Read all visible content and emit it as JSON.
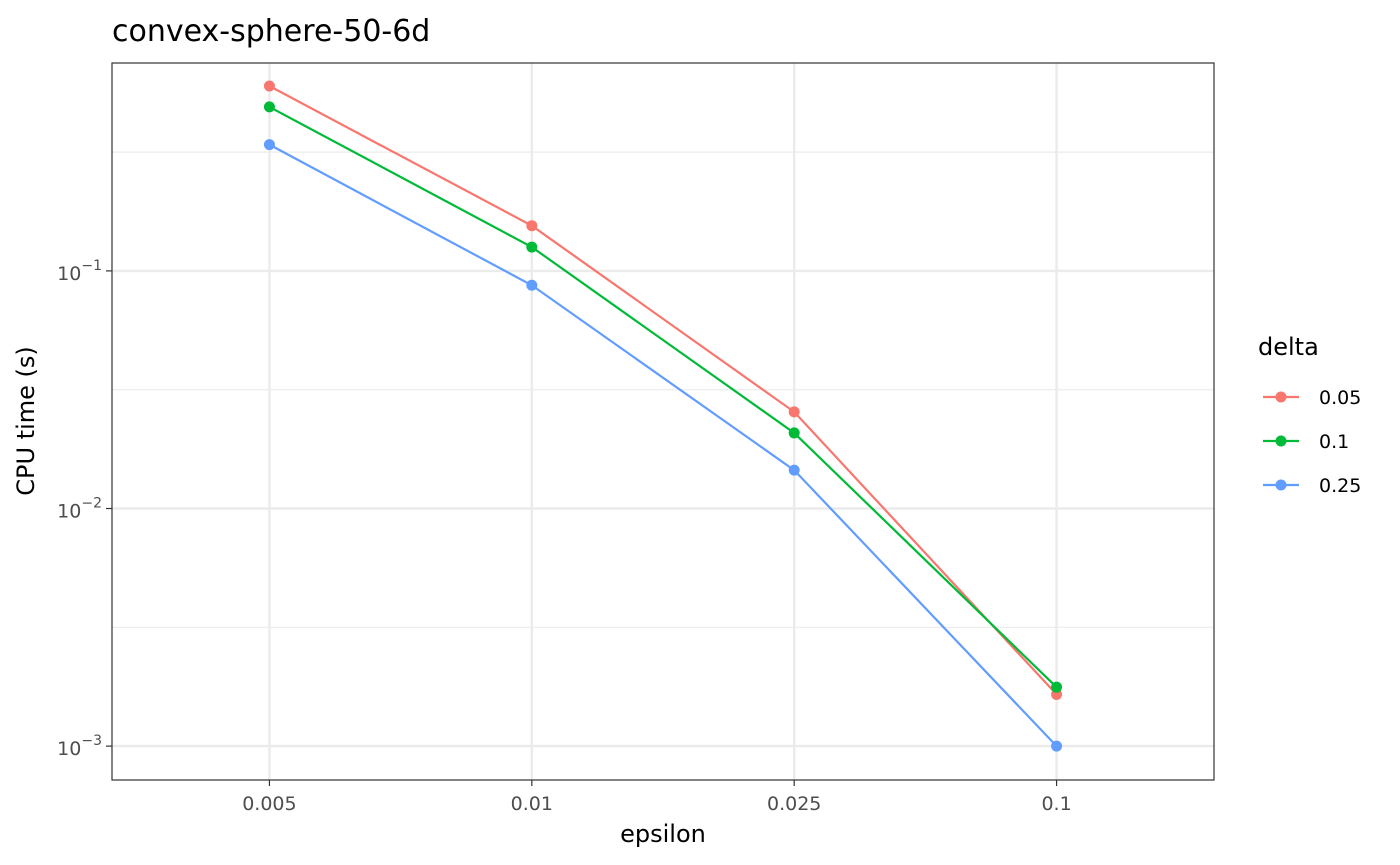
{
  "chart_data": {
    "type": "line",
    "title": "convex-sphere-50-6d",
    "xlabel": "epsilon",
    "ylabel": "CPU time (s)",
    "x_scale": "categorical",
    "y_scale": "log10",
    "categories": [
      "0.005",
      "0.01",
      "0.025",
      "0.1"
    ],
    "ylim": [
      0.00072,
      0.75
    ],
    "y_ticks": [
      {
        "value": 0.1,
        "base": "10",
        "exp": "−1"
      },
      {
        "value": 0.01,
        "base": "10",
        "exp": "−2"
      },
      {
        "value": 0.001,
        "base": "10",
        "exp": "−3"
      }
    ],
    "grid": true,
    "legend": {
      "title": "delta",
      "position": "right"
    },
    "series": [
      {
        "name": "0.05",
        "color": "#F8766D",
        "values": [
          0.6,
          0.155,
          0.0255,
          0.00165
        ]
      },
      {
        "name": "0.1",
        "color": "#00BA38",
        "values": [
          0.49,
          0.126,
          0.0208,
          0.00177
        ]
      },
      {
        "name": "0.25",
        "color": "#619CFF",
        "values": [
          0.34,
          0.087,
          0.0145,
          0.001
        ]
      }
    ]
  }
}
